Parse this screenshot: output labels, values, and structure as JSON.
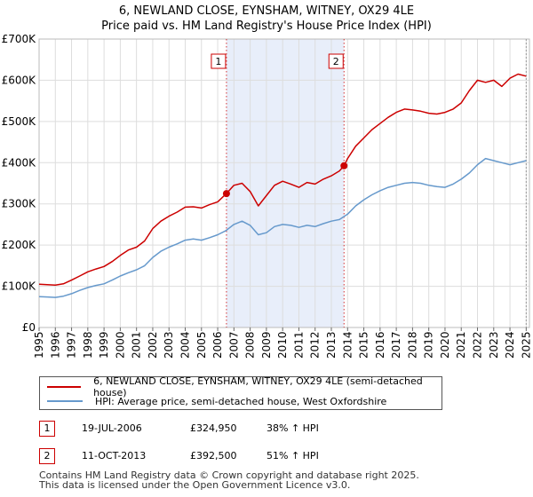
{
  "title_line1": "6, NEWLAND CLOSE, EYNSHAM, WITNEY, OX29 4LE",
  "title_line2": "Price paid vs. HM Land Registry's House Price Index (HPI)",
  "colors": {
    "property": "#cc0000",
    "hpi": "#6699cc",
    "shade": "#e8eefa",
    "grid": "#dddddd"
  },
  "chart_data": {
    "type": "line",
    "title": "6, NEWLAND CLOSE, EYNSHAM, WITNEY, OX29 4LE — Price paid vs. HM Land Registry's House Price Index (HPI)",
    "xlim": [
      1995,
      2025.2
    ],
    "ylim": [
      0,
      700000
    ],
    "x_ticks": [
      "1995",
      "1996",
      "1997",
      "1998",
      "1999",
      "2000",
      "2001",
      "2002",
      "2003",
      "2004",
      "2005",
      "2006",
      "2007",
      "2008",
      "2009",
      "2010",
      "2011",
      "2012",
      "2013",
      "2014",
      "2015",
      "2016",
      "2017",
      "2018",
      "2019",
      "2020",
      "2021",
      "2022",
      "2023",
      "2024",
      "2025"
    ],
    "y_ticks": [
      {
        "value": 0,
        "label": "£0"
      },
      {
        "value": 100000,
        "label": "£100K"
      },
      {
        "value": 200000,
        "label": "£200K"
      },
      {
        "value": 300000,
        "label": "£300K"
      },
      {
        "value": 400000,
        "label": "£400K"
      },
      {
        "value": 500000,
        "label": "£500K"
      },
      {
        "value": 600000,
        "label": "£600K"
      },
      {
        "value": 700000,
        "label": "£700K"
      }
    ],
    "shaded_range": [
      2006.54,
      2013.78
    ],
    "series": [
      {
        "name": "6, NEWLAND CLOSE, EYNSHAM, WITNEY, OX29 4LE (semi-detached house)",
        "color": "#cc0000",
        "x": [
          1995,
          1995.5,
          1996,
          1996.5,
          1997,
          1997.5,
          1998,
          1998.5,
          1999,
          1999.5,
          2000,
          2000.5,
          2001,
          2001.5,
          2002,
          2002.5,
          2003,
          2003.5,
          2004,
          2004.5,
          2005,
          2005.5,
          2006,
          2006.54,
          2007,
          2007.5,
          2008,
          2008.5,
          2009,
          2009.5,
          2010,
          2010.5,
          2011,
          2011.5,
          2012,
          2012.5,
          2013,
          2013.5,
          2013.78,
          2014,
          2014.5,
          2015,
          2015.5,
          2016,
          2016.5,
          2017,
          2017.5,
          2018,
          2018.5,
          2019,
          2019.5,
          2020,
          2020.5,
          2021,
          2021.5,
          2022,
          2022.5,
          2023,
          2023.5,
          2024,
          2024.5,
          2025
        ],
        "values": [
          105000,
          104000,
          103000,
          106000,
          115000,
          125000,
          135000,
          142000,
          148000,
          160000,
          175000,
          188000,
          195000,
          210000,
          240000,
          258000,
          270000,
          280000,
          292000,
          293000,
          290000,
          298000,
          305000,
          324950,
          345000,
          350000,
          330000,
          295000,
          320000,
          345000,
          355000,
          348000,
          340000,
          352000,
          348000,
          360000,
          368000,
          380000,
          392500,
          410000,
          440000,
          460000,
          480000,
          495000,
          510000,
          522000,
          530000,
          528000,
          525000,
          520000,
          518000,
          522000,
          530000,
          545000,
          575000,
          600000,
          595000,
          600000,
          585000,
          605000,
          615000,
          610000
        ]
      },
      {
        "name": "HPI: Average price, semi-detached house, West Oxfordshire",
        "color": "#6699cc",
        "x": [
          1995,
          1995.5,
          1996,
          1996.5,
          1997,
          1997.5,
          1998,
          1998.5,
          1999,
          1999.5,
          2000,
          2000.5,
          2001,
          2001.5,
          2002,
          2002.5,
          2003,
          2003.5,
          2004,
          2004.5,
          2005,
          2005.5,
          2006,
          2006.5,
          2007,
          2007.5,
          2008,
          2008.5,
          2009,
          2009.5,
          2010,
          2010.5,
          2011,
          2011.5,
          2012,
          2012.5,
          2013,
          2013.5,
          2014,
          2014.5,
          2015,
          2015.5,
          2016,
          2016.5,
          2017,
          2017.5,
          2018,
          2018.5,
          2019,
          2019.5,
          2020,
          2020.5,
          2021,
          2021.5,
          2022,
          2022.5,
          2023,
          2023.5,
          2024,
          2024.5,
          2025
        ],
        "values": [
          75000,
          74000,
          73000,
          76000,
          82000,
          90000,
          97000,
          102000,
          106000,
          115000,
          125000,
          133000,
          140000,
          150000,
          170000,
          185000,
          195000,
          203000,
          212000,
          215000,
          212000,
          218000,
          225000,
          235000,
          250000,
          258000,
          248000,
          225000,
          230000,
          245000,
          250000,
          248000,
          243000,
          248000,
          245000,
          252000,
          258000,
          262000,
          275000,
          295000,
          310000,
          322000,
          332000,
          340000,
          345000,
          350000,
          352000,
          350000,
          345000,
          342000,
          340000,
          348000,
          360000,
          375000,
          395000,
          410000,
          405000,
          400000,
          395000,
          400000,
          405000
        ]
      }
    ],
    "sales": [
      {
        "id": "1",
        "x": 2006.54,
        "value": 324950
      },
      {
        "id": "2",
        "x": 2013.78,
        "value": 392500
      }
    ]
  },
  "legend": {
    "property": "6, NEWLAND CLOSE, EYNSHAM, WITNEY, OX29 4LE (semi-detached house)",
    "hpi": "HPI: Average price, semi-detached house, West Oxfordshire"
  },
  "sales_table": [
    {
      "id": "1",
      "date": "19-JUL-2006",
      "price": "£324,950",
      "hpi": "38% ↑ HPI"
    },
    {
      "id": "2",
      "date": "11-OCT-2013",
      "price": "£392,500",
      "hpi": "51% ↑ HPI"
    }
  ],
  "footer_line1": "Contains HM Land Registry data © Crown copyright and database right 2025.",
  "footer_line2": "This data is licensed under the Open Government Licence v3.0."
}
